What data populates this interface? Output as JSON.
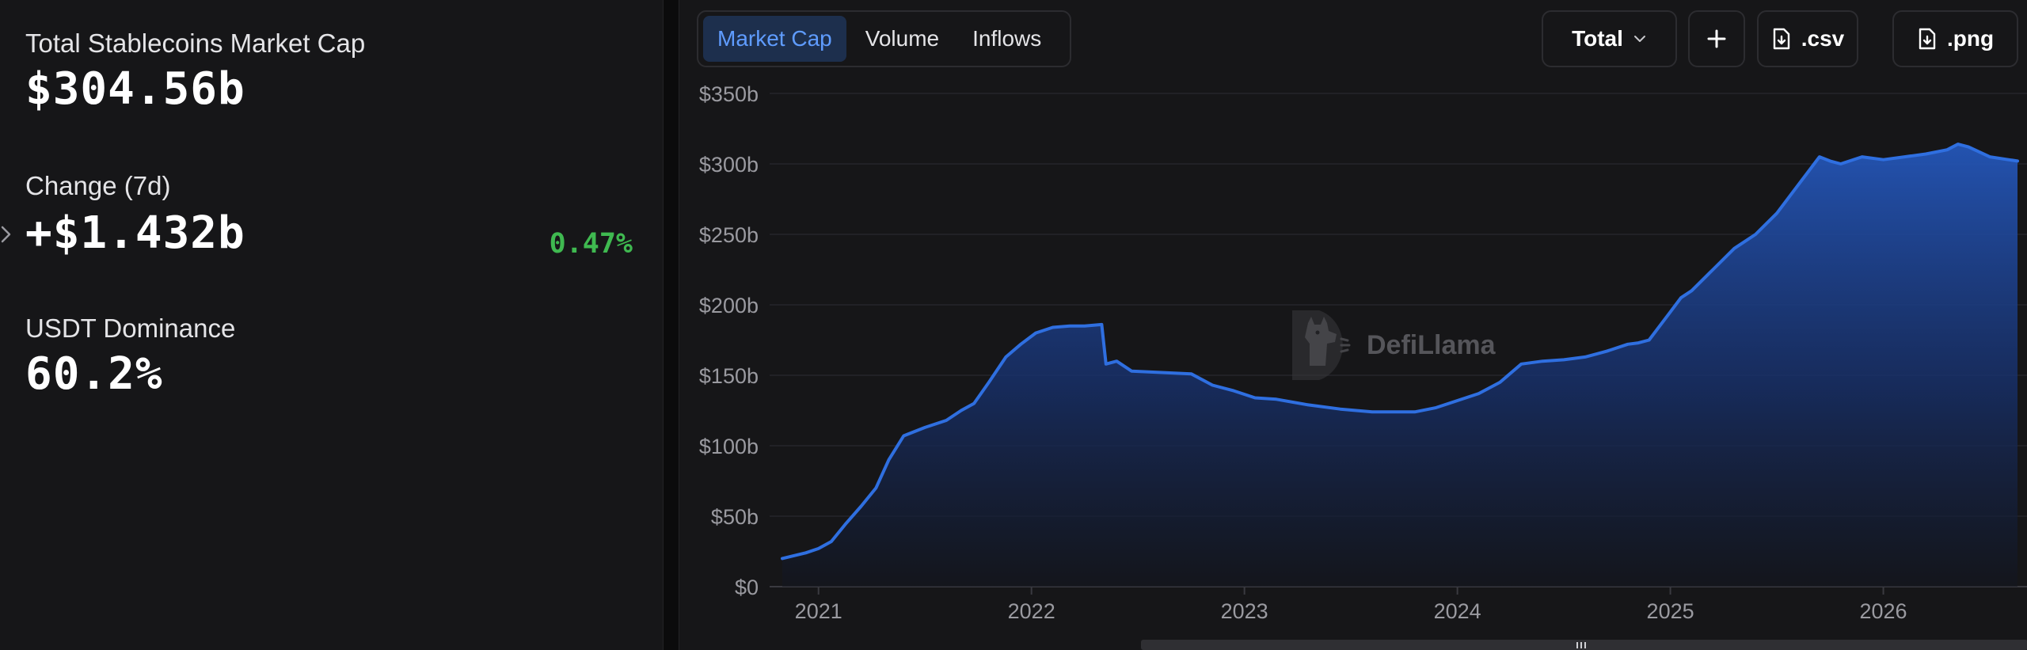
{
  "stats": {
    "market_cap_label": "Total Stablecoins Market Cap",
    "market_cap_value": "$304.56b",
    "change_label": "Change (7d)",
    "change_value": "+$1.432b",
    "change_pct": "0.47%",
    "dominance_label": "USDT Dominance",
    "dominance_value": "60.2%"
  },
  "tabs": [
    {
      "label": "Market Cap",
      "active": true
    },
    {
      "label": "Volume",
      "active": false
    },
    {
      "label": "Inflows",
      "active": false
    }
  ],
  "controls": {
    "total_label": "Total",
    "add_icon": "plus-icon",
    "csv_label": ".csv",
    "png_label": ".png",
    "download_icon": "file-download-icon"
  },
  "watermark": {
    "text": "DefiLlama"
  },
  "colors": {
    "line": "#2f6fe0",
    "positive": "#3fb950",
    "active_tab_bg": "#1d2f4d",
    "active_tab_text": "#5f9cff"
  },
  "chart_data": {
    "type": "area",
    "title": "",
    "xlabel": "",
    "ylabel": "",
    "ylim": [
      0,
      350
    ],
    "xlim": [
      2020.83,
      2026.63
    ],
    "yticks": [
      {
        "value": 0,
        "label": "$0"
      },
      {
        "value": 50,
        "label": "$50b"
      },
      {
        "value": 100,
        "label": "$100b"
      },
      {
        "value": 150,
        "label": "$150b"
      },
      {
        "value": 200,
        "label": "$200b"
      },
      {
        "value": 250,
        "label": "$250b"
      },
      {
        "value": 300,
        "label": "$300b"
      },
      {
        "value": 350,
        "label": "$350b"
      }
    ],
    "xticks": [
      {
        "value": 2021,
        "label": "2021"
      },
      {
        "value": 2022,
        "label": "2022"
      },
      {
        "value": 2023,
        "label": "2023"
      },
      {
        "value": 2024,
        "label": "2024"
      },
      {
        "value": 2025,
        "label": "2025"
      },
      {
        "value": 2026,
        "label": "2026"
      }
    ],
    "grid": true,
    "series": [
      {
        "x": [
          2020.83,
          2020.94,
          2021.0,
          2021.06,
          2021.13,
          2021.2,
          2021.27,
          2021.33,
          2021.4,
          2021.5,
          2021.6,
          2021.67,
          2021.73,
          2021.8,
          2021.88,
          2021.95,
          2022.02,
          2022.1,
          2022.18,
          2022.25,
          2022.33,
          2022.35,
          2022.4,
          2022.47,
          2022.6,
          2022.75,
          2022.85,
          2022.95,
          2023.05,
          2023.15,
          2023.3,
          2023.45,
          2023.6,
          2023.7,
          2023.8,
          2023.9,
          2024.0,
          2024.1,
          2024.2,
          2024.3,
          2024.4,
          2024.5,
          2024.6,
          2024.7,
          2024.8,
          2024.85,
          2024.9,
          2025.0,
          2025.05,
          2025.1,
          2025.2,
          2025.3,
          2025.4,
          2025.5,
          2025.6,
          2025.7,
          2025.75,
          2025.8,
          2025.9,
          2026.0,
          2026.1,
          2026.2,
          2026.3,
          2026.35,
          2026.4,
          2026.5,
          2026.63
        ],
        "values": [
          20,
          24,
          27,
          32,
          45,
          57,
          70,
          90,
          107,
          113,
          118,
          125,
          130,
          145,
          163,
          172,
          180,
          184,
          185,
          185,
          186,
          158,
          160,
          153,
          152,
          151,
          143,
          139,
          134,
          133,
          129,
          126,
          124,
          124,
          124,
          127,
          132,
          137,
          145,
          158,
          160,
          161,
          163,
          167,
          172,
          173,
          175,
          195,
          205,
          210,
          225,
          240,
          250,
          265,
          285,
          305,
          302,
          300,
          305,
          303,
          305,
          307,
          310,
          314,
          312,
          305,
          302
        ]
      }
    ]
  }
}
